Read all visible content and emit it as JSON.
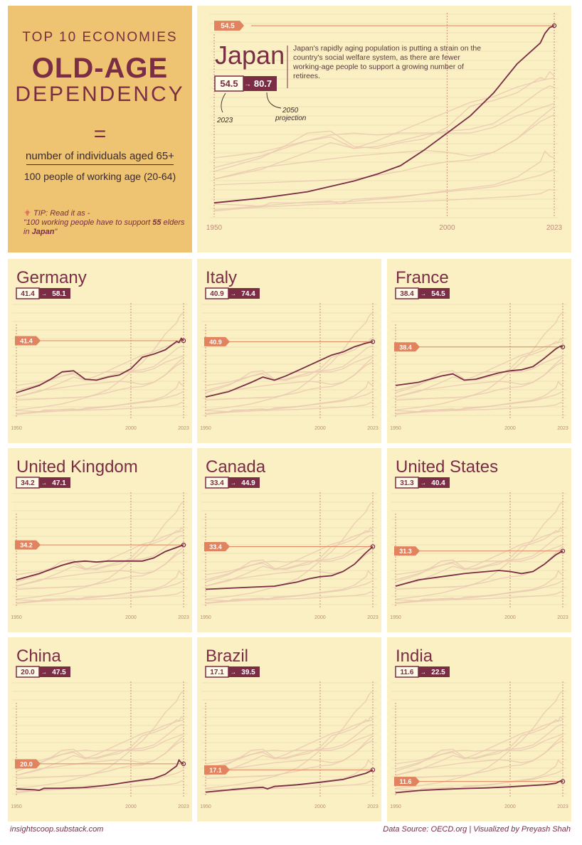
{
  "header": {
    "top_line": "TOP 10 ECONOMIES",
    "title_big": "OLD-AGE",
    "title_sub": "DEPENDENCY",
    "equals": "=",
    "numerator": "number of individuals aged 65+",
    "denominator": "100 people of working age (20-64)",
    "tip_label": "TIP: Read it as -",
    "tip_text_a": "\"100 working people have to support ",
    "tip_text_b": "55",
    "tip_text_c": " elders in ",
    "tip_text_d": "Japan",
    "tip_text_e": "\""
  },
  "japan_extra": {
    "description": "Japan's rapidly aging population is putting a strain on the country's social welfare system, as there are fewer working-age people to support a growing number of retirees.",
    "note_2023": "2023",
    "note_2050": "2050 projection"
  },
  "footer": {
    "left": "insightscoop.substack.com",
    "right": "Data Source: OECD.org | Visualized by Preyash Shah"
  },
  "colors": {
    "maroon": "#7a2d44",
    "salmon": "#e0835e",
    "panel": "#faf0c4",
    "title_panel": "#eec371",
    "ghost": "#eac9b0",
    "grid": "#efe2b4"
  },
  "chart_data": {
    "type": "line",
    "x_axis": {
      "min": 1950,
      "max": 2023,
      "ticks": [
        1950,
        2000,
        2023
      ]
    },
    "y_axis": {
      "min": 5,
      "max": 56
    },
    "countries": [
      {
        "name": "Japan",
        "current": "54.5",
        "projection": "80.7",
        "last_value": 54.5,
        "x": [
          1950,
          1960,
          1970,
          1980,
          1985,
          1990,
          1995,
          2000,
          2005,
          2010,
          2015,
          2020,
          2021,
          2022,
          2023
        ],
        "y": [
          8.3,
          9.5,
          11.2,
          14,
          15.8,
          18,
          22,
          26.5,
          31,
          37,
          44.5,
          50,
          52.5,
          54,
          54.5
        ]
      },
      {
        "name": "Germany",
        "current": "41.4",
        "projection": "58.1",
        "last_value": 41.4,
        "x": [
          1950,
          1960,
          1965,
          1970,
          1975,
          1980,
          1985,
          1990,
          1995,
          2000,
          2005,
          2010,
          2015,
          2020,
          2021,
          2022,
          2023
        ],
        "y": [
          16.5,
          20,
          23,
          26.5,
          27,
          23,
          22.5,
          24,
          25,
          28,
          33.5,
          35,
          37,
          41,
          40.5,
          42.5,
          41.4
        ]
      },
      {
        "name": "Italy",
        "current": "40.9",
        "projection": "74.4",
        "last_value": 40.9,
        "x": [
          1950,
          1960,
          1970,
          1975,
          1980,
          1985,
          1990,
          1995,
          2000,
          2005,
          2010,
          2015,
          2020,
          2023
        ],
        "y": [
          14.5,
          17,
          21.5,
          24,
          22.5,
          24.5,
          27,
          29.5,
          32,
          34.5,
          36,
          38.5,
          40.2,
          40.9
        ]
      },
      {
        "name": "France",
        "current": "38.4",
        "projection": "54.5",
        "last_value": 38.4,
        "x": [
          1950,
          1960,
          1970,
          1975,
          1980,
          1985,
          1990,
          1995,
          2000,
          2005,
          2010,
          2015,
          2020,
          2022,
          2023
        ],
        "y": [
          20,
          21.5,
          24.5,
          25.5,
          22.5,
          23,
          24.5,
          26,
          27,
          27.5,
          29,
          33,
          37.5,
          38.8,
          38.4
        ]
      },
      {
        "name": "United Kingdom",
        "current": "34.2",
        "projection": "47.1",
        "last_value": 34.2,
        "x": [
          1950,
          1960,
          1970,
          1975,
          1980,
          1985,
          1990,
          1995,
          2000,
          2005,
          2010,
          2015,
          2020,
          2023
        ],
        "y": [
          17.5,
          20.5,
          24.5,
          26,
          26.5,
          26,
          26.5,
          26.5,
          26.5,
          26.5,
          28,
          31,
          33,
          34.2
        ]
      },
      {
        "name": "Canada",
        "current": "33.4",
        "projection": "44.9",
        "last_value": 33.4,
        "x": [
          1950,
          1960,
          1970,
          1980,
          1990,
          1995,
          2000,
          2005,
          2010,
          2015,
          2020,
          2023
        ],
        "y": [
          13,
          13.5,
          14,
          14.5,
          16.5,
          18,
          19,
          19.5,
          21.5,
          25,
          30.5,
          33.4
        ]
      },
      {
        "name": "United States",
        "current": "31.3",
        "projection": "40.4",
        "last_value": 31.3,
        "x": [
          1950,
          1960,
          1970,
          1980,
          1985,
          1990,
          1995,
          2000,
          2005,
          2010,
          2015,
          2020,
          2023
        ],
        "y": [
          14.5,
          17.5,
          19,
          20.5,
          21,
          21.5,
          22,
          21.5,
          20.5,
          21.5,
          25,
          29.5,
          31.3
        ]
      },
      {
        "name": "China",
        "current": "20.0",
        "projection": "47.5",
        "last_value": 20.0,
        "x": [
          1950,
          1958,
          1960,
          1962,
          1970,
          1980,
          1990,
          2000,
          2010,
          2015,
          2020,
          2021,
          2022,
          2023
        ],
        "y": [
          8,
          7.6,
          7.3,
          8.3,
          8.3,
          8.7,
          9.8,
          11.5,
          13,
          15,
          19,
          21.8,
          20.5,
          20.0
        ]
      },
      {
        "name": "Brazil",
        "current": "17.1",
        "projection": "39.5",
        "last_value": 17.1,
        "x": [
          1950,
          1960,
          1970,
          1975,
          1977,
          1980,
          1990,
          2000,
          2010,
          2015,
          2020,
          2023
        ],
        "y": [
          6.5,
          7.5,
          8.5,
          8.8,
          8,
          9.2,
          10,
          11.2,
          12.5,
          14,
          15.5,
          17.1
        ]
      },
      {
        "name": "India",
        "current": "11.6",
        "projection": "22.5",
        "last_value": 11.6,
        "x": [
          1950,
          1960,
          1970,
          1980,
          1990,
          2000,
          2010,
          2015,
          2020,
          2022,
          2023
        ],
        "y": [
          6.2,
          7.2,
          7.8,
          8.2,
          8.5,
          9,
          9.7,
          10,
          10.7,
          11.8,
          11.6
        ]
      }
    ]
  }
}
